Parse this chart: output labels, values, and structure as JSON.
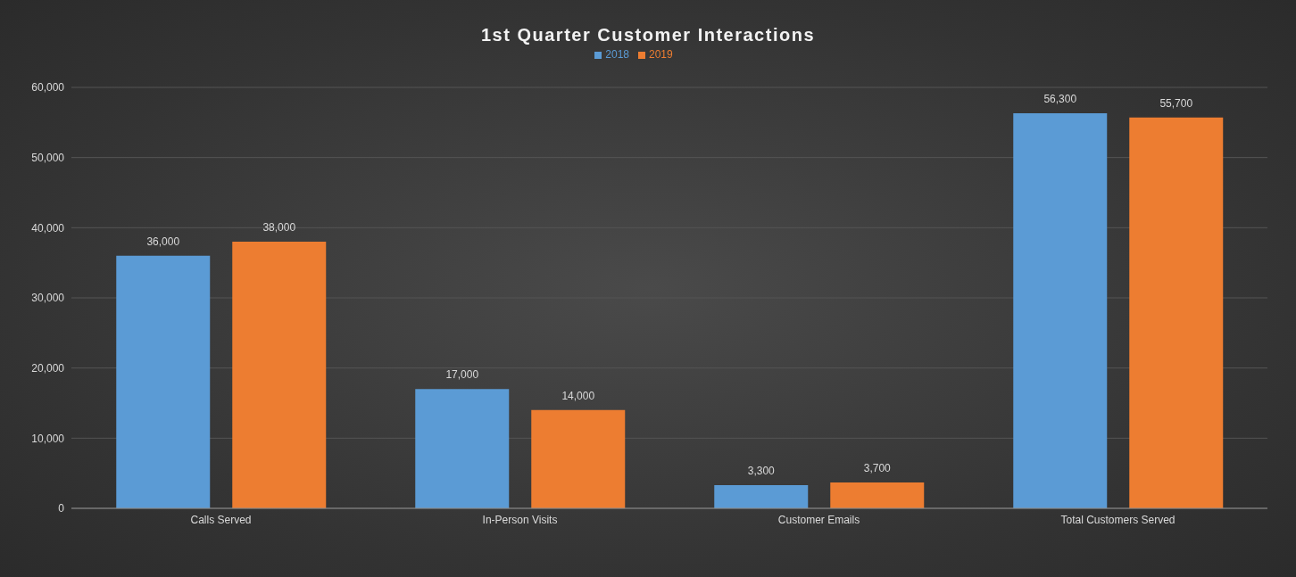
{
  "chart_data": {
    "type": "bar",
    "title": "1st Quarter Customer Interactions",
    "categories": [
      "Calls Served",
      "In-Person Visits",
      "Customer Emails",
      "Total Customers Served"
    ],
    "series": [
      {
        "name": "2018",
        "color": "#5b9bd5",
        "values": [
          36000,
          17000,
          3300,
          56300
        ],
        "value_labels": [
          "36,000",
          "17,000",
          "3,300",
          "56,300"
        ]
      },
      {
        "name": "2019",
        "color": "#ed7d31",
        "values": [
          38000,
          14000,
          3700,
          55700
        ],
        "value_labels": [
          "38,000",
          "14,000",
          "3,700",
          "55,700"
        ]
      }
    ],
    "ylim": [
      0,
      60000
    ],
    "yticks": [
      {
        "value": 0,
        "label": "0"
      },
      {
        "value": 10000,
        "label": "10,000"
      },
      {
        "value": 20000,
        "label": "20,000"
      },
      {
        "value": 30000,
        "label": "30,000"
      },
      {
        "value": 40000,
        "label": "40,000"
      },
      {
        "value": 50000,
        "label": "50,000"
      },
      {
        "value": 60000,
        "label": "60,000"
      }
    ],
    "grid": "y",
    "legend": "top"
  }
}
